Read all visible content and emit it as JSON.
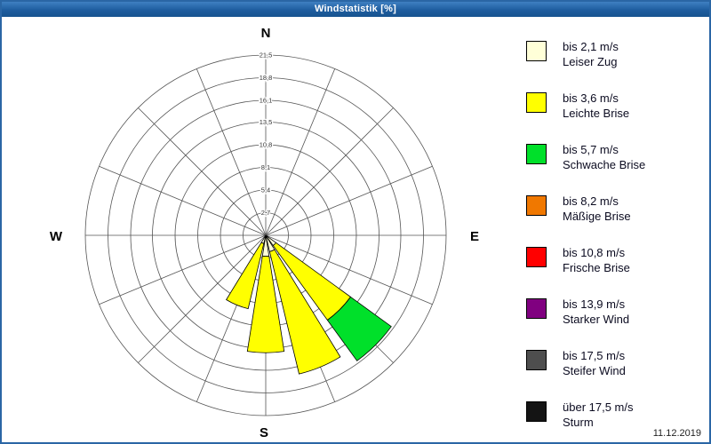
{
  "window": {
    "title": "Windstatistik [%]",
    "date": "11.12.2019"
  },
  "compass": {
    "n": "N",
    "e": "E",
    "s": "S",
    "w": "W"
  },
  "legend": [
    {
      "speed": "bis 2,1 m/s",
      "name": "Leiser Zug",
      "color": "#ffffd8"
    },
    {
      "speed": "bis 3,6 m/s",
      "name": "Leichte Brise",
      "color": "#ffff00"
    },
    {
      "speed": "bis 5,7 m/s",
      "name": "Schwache Brise",
      "color": "#00e02a"
    },
    {
      "speed": "bis 8,2 m/s",
      "name": "Mäßige Brise",
      "color": "#f07800"
    },
    {
      "speed": "bis 10,8 m/s",
      "name": "Frische Brise",
      "color": "#ff0000"
    },
    {
      "speed": "bis 13,9 m/s",
      "name": "Starker Wind",
      "color": "#800080"
    },
    {
      "speed": "bis 17,5 m/s",
      "name": "Steifer Wind",
      "color": "#4e4e4e"
    },
    {
      "speed": "über 17,5 m/s",
      "name": "Sturm",
      "color": "#141414"
    }
  ],
  "chart_data": {
    "type": "wind-rose",
    "title": "Windstatistik [%]",
    "units": "%",
    "max": 21.5,
    "ring_values": [
      2.7,
      5.4,
      8.1,
      10.8,
      13.5,
      16.1,
      18.8,
      21.5
    ],
    "ring_labels": [
      "2,7",
      "5,4",
      "8,1",
      "10,8",
      "13,5",
      "16,1",
      "18,8",
      "21,5"
    ],
    "sectors": 16,
    "directions": [
      "N",
      "NNE",
      "NE",
      "ENE",
      "E",
      "ESE",
      "SE",
      "SSE",
      "S",
      "SSW",
      "SW",
      "WSW",
      "W",
      "WNW",
      "NW",
      "NNW"
    ],
    "series": [
      {
        "name": "bis 2,1 m/s",
        "color": "#ffffd8",
        "values": [
          0,
          0,
          0,
          0,
          0,
          0,
          1.5,
          2,
          2.5,
          1,
          0,
          0,
          0,
          0,
          0,
          0
        ]
      },
      {
        "name": "bis 3,6 m/s",
        "color": "#ffff00",
        "values": [
          0,
          0,
          0,
          0,
          0,
          0,
          11,
          15,
          11.5,
          8,
          0,
          0,
          0,
          0,
          0,
          0
        ]
      },
      {
        "name": "bis 5,7 m/s",
        "color": "#00e02a",
        "values": [
          0,
          0,
          0,
          0,
          0,
          0,
          6,
          0,
          0,
          0,
          0,
          0,
          0,
          0,
          0,
          0
        ]
      },
      {
        "name": "bis 8,2 m/s",
        "color": "#f07800",
        "values": [
          0,
          0,
          0,
          0,
          0,
          0,
          0,
          0,
          0,
          0,
          0,
          0,
          0,
          0,
          0,
          0
        ]
      },
      {
        "name": "bis 10,8 m/s",
        "color": "#ff0000",
        "values": [
          0,
          0,
          0,
          0,
          0,
          0,
          0,
          0,
          0,
          0,
          0,
          0,
          0,
          0,
          0,
          0
        ]
      },
      {
        "name": "bis 13,9 m/s",
        "color": "#800080",
        "values": [
          0,
          0,
          0,
          0,
          0,
          0,
          0,
          0,
          0,
          0,
          0,
          0,
          0,
          0,
          0,
          0
        ]
      },
      {
        "name": "bis 17,5 m/s",
        "color": "#4e4e4e",
        "values": [
          0,
          0,
          0,
          0,
          0,
          0,
          0,
          0,
          0,
          0,
          0,
          0,
          0,
          0,
          0,
          0
        ]
      },
      {
        "name": "über 17,5 m/s",
        "color": "#141414",
        "values": [
          0,
          0,
          0,
          0,
          0,
          0,
          0,
          0,
          0,
          0,
          0,
          0,
          0,
          0,
          0,
          0
        ]
      }
    ],
    "legend_position": "right",
    "grid": true
  }
}
